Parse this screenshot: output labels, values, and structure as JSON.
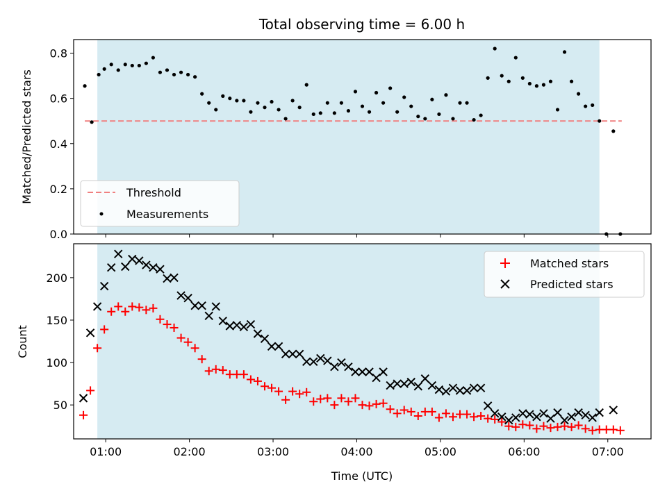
{
  "chart_data": [
    {
      "type": "scatter",
      "title": "Total observing time = 6.00 h",
      "xlabel": "",
      "ylabel": "Matched/Predicted stars",
      "xlim": [
        "00:37",
        "07:31"
      ],
      "ylim": [
        0,
        0.86
      ],
      "yticks": [
        0.0,
        0.2,
        0.4,
        0.6,
        0.8
      ],
      "ytick_labels": [
        "0.0",
        "0.2",
        "0.4",
        "0.6",
        "0.8"
      ],
      "shaded_region": [
        "00:54",
        "06:54"
      ],
      "threshold": {
        "label": "Threshold",
        "y": 0.5,
        "x_range": [
          "00:45",
          "07:10"
        ],
        "color": "#f08080"
      },
      "series": [
        {
          "name": "Measurements",
          "color": "#000000",
          "points": [
            [
              "00:45",
              0.655
            ],
            [
              "00:50",
              0.495
            ],
            [
              "00:55",
              0.705
            ],
            [
              "00:59",
              0.73
            ],
            [
              "01:04",
              0.75
            ],
            [
              "01:09",
              0.725
            ],
            [
              "01:14",
              0.75
            ],
            [
              "01:19",
              0.745
            ],
            [
              "01:24",
              0.745
            ],
            [
              "01:29",
              0.755
            ],
            [
              "01:34",
              0.78
            ],
            [
              "01:39",
              0.715
            ],
            [
              "01:44",
              0.725
            ],
            [
              "01:49",
              0.705
            ],
            [
              "01:54",
              0.715
            ],
            [
              "01:59",
              0.705
            ],
            [
              "02:04",
              0.695
            ],
            [
              "02:09",
              0.62
            ],
            [
              "02:14",
              0.58
            ],
            [
              "02:19",
              0.55
            ],
            [
              "02:24",
              0.61
            ],
            [
              "02:29",
              0.6
            ],
            [
              "02:34",
              0.59
            ],
            [
              "02:39",
              0.59
            ],
            [
              "02:44",
              0.54
            ],
            [
              "02:49",
              0.58
            ],
            [
              "02:54",
              0.56
            ],
            [
              "02:59",
              0.585
            ],
            [
              "03:04",
              0.55
            ],
            [
              "03:09",
              0.51
            ],
            [
              "03:14",
              0.59
            ],
            [
              "03:19",
              0.56
            ],
            [
              "03:24",
              0.66
            ],
            [
              "03:29",
              0.53
            ],
            [
              "03:34",
              0.535
            ],
            [
              "03:39",
              0.58
            ],
            [
              "03:44",
              0.535
            ],
            [
              "03:49",
              0.58
            ],
            [
              "03:54",
              0.545
            ],
            [
              "03:59",
              0.63
            ],
            [
              "04:04",
              0.565
            ],
            [
              "04:09",
              0.54
            ],
            [
              "04:14",
              0.625
            ],
            [
              "04:19",
              0.58
            ],
            [
              "04:24",
              0.645
            ],
            [
              "04:29",
              0.54
            ],
            [
              "04:34",
              0.605
            ],
            [
              "04:39",
              0.565
            ],
            [
              "04:44",
              0.52
            ],
            [
              "04:49",
              0.51
            ],
            [
              "04:54",
              0.595
            ],
            [
              "04:59",
              0.53
            ],
            [
              "05:04",
              0.615
            ],
            [
              "05:09",
              0.51
            ],
            [
              "05:14",
              0.58
            ],
            [
              "05:19",
              0.58
            ],
            [
              "05:24",
              0.505
            ],
            [
              "05:29",
              0.525
            ],
            [
              "05:34",
              0.69
            ],
            [
              "05:39",
              0.82
            ],
            [
              "05:44",
              0.7
            ],
            [
              "05:49",
              0.675
            ],
            [
              "05:54",
              0.78
            ],
            [
              "05:59",
              0.69
            ],
            [
              "06:04",
              0.665
            ],
            [
              "06:09",
              0.655
            ],
            [
              "06:14",
              0.66
            ],
            [
              "06:19",
              0.675
            ],
            [
              "06:24",
              0.55
            ],
            [
              "06:29",
              0.805
            ],
            [
              "06:34",
              0.675
            ],
            [
              "06:39",
              0.62
            ],
            [
              "06:44",
              0.565
            ],
            [
              "06:49",
              0.57
            ],
            [
              "06:54",
              0.5
            ],
            [
              "06:59",
              0.0
            ],
            [
              "07:04",
              0.455
            ],
            [
              "07:09",
              0.0
            ]
          ]
        }
      ],
      "legend": {
        "position": "lower-left",
        "entries": [
          "Threshold",
          "Measurements"
        ]
      }
    },
    {
      "type": "scatter",
      "title": "",
      "xlabel": "Time (UTC)",
      "ylabel": "Count",
      "xlim": [
        "00:37",
        "07:31"
      ],
      "ylim": [
        10,
        240
      ],
      "xticks": [
        "01:00",
        "02:00",
        "03:00",
        "04:00",
        "05:00",
        "06:00",
        "07:00"
      ],
      "yticks": [
        50,
        100,
        150,
        200
      ],
      "ytick_labels": [
        "50",
        "100",
        "150",
        "200"
      ],
      "shaded_region": [
        "00:54",
        "06:54"
      ],
      "series": [
        {
          "name": "Matched stars",
          "marker": "+",
          "color": "#ff0000",
          "points": [
            [
              "00:44",
              38
            ],
            [
              "00:49",
              67
            ],
            [
              "00:54",
              117
            ],
            [
              "00:59",
              139
            ],
            [
              "01:04",
              160
            ],
            [
              "01:09",
              166
            ],
            [
              "01:14",
              160
            ],
            [
              "01:19",
              166
            ],
            [
              "01:24",
              165
            ],
            [
              "01:29",
              162
            ],
            [
              "01:34",
              164
            ],
            [
              "01:39",
              151
            ],
            [
              "01:44",
              145
            ],
            [
              "01:49",
              141
            ],
            [
              "01:54",
              129
            ],
            [
              "01:59",
              124
            ],
            [
              "02:04",
              117
            ],
            [
              "02:09",
              104
            ],
            [
              "02:14",
              90
            ],
            [
              "02:19",
              92
            ],
            [
              "02:24",
              91
            ],
            [
              "02:29",
              86
            ],
            [
              "02:34",
              86
            ],
            [
              "02:39",
              86
            ],
            [
              "02:44",
              80
            ],
            [
              "02:49",
              78
            ],
            [
              "02:54",
              72
            ],
            [
              "02:59",
              70
            ],
            [
              "03:04",
              66
            ],
            [
              "03:09",
              56
            ],
            [
              "03:14",
              66
            ],
            [
              "03:19",
              63
            ],
            [
              "03:24",
              65
            ],
            [
              "03:29",
              54
            ],
            [
              "03:34",
              57
            ],
            [
              "03:39",
              58
            ],
            [
              "03:44",
              50
            ],
            [
              "03:49",
              58
            ],
            [
              "03:54",
              54
            ],
            [
              "03:59",
              58
            ],
            [
              "04:04",
              50
            ],
            [
              "04:09",
              49
            ],
            [
              "04:14",
              51
            ],
            [
              "04:19",
              52
            ],
            [
              "04:24",
              45
            ],
            [
              "04:29",
              40
            ],
            [
              "04:34",
              44
            ],
            [
              "04:39",
              42
            ],
            [
              "04:44",
              37
            ],
            [
              "04:49",
              42
            ],
            [
              "04:54",
              42
            ],
            [
              "04:59",
              35
            ],
            [
              "05:04",
              40
            ],
            [
              "05:09",
              36
            ],
            [
              "05:14",
              39
            ],
            [
              "05:19",
              39
            ],
            [
              "05:24",
              36
            ],
            [
              "05:29",
              37
            ],
            [
              "05:34",
              34
            ],
            [
              "05:39",
              33
            ],
            [
              "05:44",
              30
            ],
            [
              "05:49",
              25
            ],
            [
              "05:54",
              24
            ],
            [
              "05:59",
              27
            ],
            [
              "06:04",
              26
            ],
            [
              "06:09",
              22
            ],
            [
              "06:14",
              25
            ],
            [
              "06:19",
              23
            ],
            [
              "06:24",
              24
            ],
            [
              "06:29",
              25
            ],
            [
              "06:34",
              24
            ],
            [
              "06:39",
              26
            ],
            [
              "06:44",
              22
            ],
            [
              "06:49",
              20
            ],
            [
              "06:54",
              21
            ],
            [
              "06:59",
              21
            ],
            [
              "07:04",
              21
            ],
            [
              "07:09",
              20
            ]
          ]
        },
        {
          "name": "Predicted stars",
          "marker": "x",
          "color": "#000000",
          "points": [
            [
              "00:44",
              58
            ],
            [
              "00:49",
              135
            ],
            [
              "00:54",
              166
            ],
            [
              "00:59",
              190
            ],
            [
              "01:04",
              212
            ],
            [
              "01:09",
              228
            ],
            [
              "01:14",
              213
            ],
            [
              "01:19",
              222
            ],
            [
              "01:24",
              220
            ],
            [
              "01:29",
              215
            ],
            [
              "01:34",
              212
            ],
            [
              "01:39",
              210
            ],
            [
              "01:44",
              199
            ],
            [
              "01:49",
              200
            ],
            [
              "01:54",
              179
            ],
            [
              "01:59",
              176
            ],
            [
              "02:04",
              167
            ],
            [
              "02:09",
              167
            ],
            [
              "02:14",
              155
            ],
            [
              "02:19",
              166
            ],
            [
              "02:24",
              149
            ],
            [
              "02:29",
              143
            ],
            [
              "02:34",
              144
            ],
            [
              "02:39",
              142
            ],
            [
              "02:44",
              145
            ],
            [
              "02:49",
              134
            ],
            [
              "02:54",
              128
            ],
            [
              "02:59",
              119
            ],
            [
              "03:04",
              119
            ],
            [
              "03:09",
              110
            ],
            [
              "03:14",
              110
            ],
            [
              "03:19",
              110
            ],
            [
              "03:24",
              101
            ],
            [
              "03:29",
              101
            ],
            [
              "03:34",
              105
            ],
            [
              "03:39",
              102
            ],
            [
              "03:44",
              95
            ],
            [
              "03:49",
              100
            ],
            [
              "03:54",
              95
            ],
            [
              "03:59",
              89
            ],
            [
              "04:04",
              89
            ],
            [
              "04:09",
              89
            ],
            [
              "04:14",
              82
            ],
            [
              "04:19",
              89
            ],
            [
              "04:24",
              73
            ],
            [
              "04:29",
              75
            ],
            [
              "04:34",
              75
            ],
            [
              "04:39",
              77
            ],
            [
              "04:44",
              72
            ],
            [
              "04:49",
              81
            ],
            [
              "04:54",
              73
            ],
            [
              "04:59",
              68
            ],
            [
              "05:04",
              66
            ],
            [
              "05:09",
              70
            ],
            [
              "05:14",
              67
            ],
            [
              "05:19",
              67
            ],
            [
              "05:24",
              70
            ],
            [
              "05:29",
              70
            ],
            [
              "05:34",
              49
            ],
            [
              "05:39",
              40
            ],
            [
              "05:44",
              36
            ],
            [
              "05:49",
              32
            ],
            [
              "05:54",
              35
            ],
            [
              "05:59",
              40
            ],
            [
              "06:04",
              39
            ],
            [
              "06:09",
              36
            ],
            [
              "06:14",
              40
            ],
            [
              "06:19",
              34
            ],
            [
              "06:24",
              41
            ],
            [
              "06:29",
              32
            ],
            [
              "06:34",
              36
            ],
            [
              "06:39",
              41
            ],
            [
              "06:44",
              38
            ],
            [
              "06:49",
              35
            ],
            [
              "06:54",
              41
            ],
            [
              "06:59",
              null
            ],
            [
              "07:04",
              44
            ]
          ]
        }
      ],
      "legend": {
        "position": "top-right",
        "entries": [
          "Matched stars",
          "Predicted stars"
        ]
      }
    }
  ]
}
